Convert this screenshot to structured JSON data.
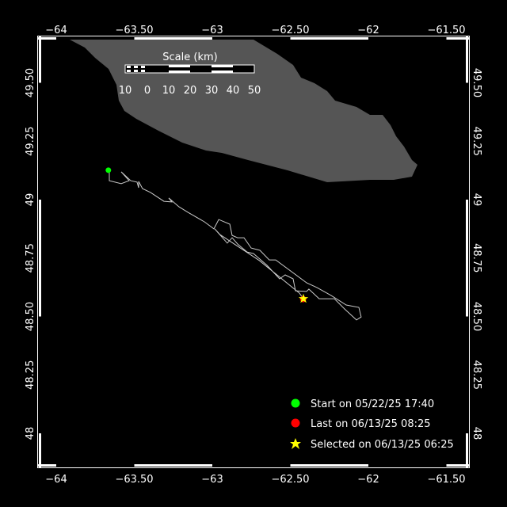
{
  "map": {
    "background_color": "#000000",
    "land_color": "#555555",
    "track_color": "#c8c8c8",
    "lon_ticks": [
      {
        "value": -64,
        "label": "−64"
      },
      {
        "value": -63.5,
        "label": "−63.50"
      },
      {
        "value": -63,
        "label": "−63"
      },
      {
        "value": -62.5,
        "label": "−62.50"
      },
      {
        "value": -62,
        "label": "−62"
      },
      {
        "value": -61.5,
        "label": "−61.50"
      }
    ],
    "lat_ticks": [
      {
        "value": 49.5,
        "label": "49.50"
      },
      {
        "value": 49.25,
        "label": "49.25"
      },
      {
        "value": 49,
        "label": "49"
      },
      {
        "value": 48.75,
        "label": "48.75"
      },
      {
        "value": 48.5,
        "label": "48.50"
      },
      {
        "value": 48.25,
        "label": "48.25"
      },
      {
        "value": 48,
        "label": "48"
      }
    ],
    "track": [
      [
        -63.666,
        49.126
      ],
      [
        -63.66,
        49.119
      ],
      [
        -63.66,
        49.081
      ],
      [
        -63.584,
        49.068
      ],
      [
        -63.533,
        49.081
      ],
      [
        -63.584,
        49.119
      ],
      [
        -63.523,
        49.081
      ],
      [
        -63.482,
        49.075
      ],
      [
        -63.472,
        49.051
      ],
      [
        -63.472,
        49.078
      ],
      [
        -63.447,
        49.047
      ],
      [
        -63.396,
        49.031
      ],
      [
        -63.31,
        48.993
      ],
      [
        -63.259,
        48.99
      ],
      [
        -63.279,
        49.007
      ],
      [
        -63.213,
        48.969
      ],
      [
        -63.157,
        48.946
      ],
      [
        -63.051,
        48.905
      ],
      [
        -62.99,
        48.875
      ],
      [
        -62.959,
        48.915
      ],
      [
        -62.888,
        48.895
      ],
      [
        -62.873,
        48.847
      ],
      [
        -62.838,
        48.837
      ],
      [
        -62.797,
        48.837
      ],
      [
        -62.751,
        48.793
      ],
      [
        -62.695,
        48.783
      ],
      [
        -62.635,
        48.742
      ],
      [
        -62.594,
        48.742
      ],
      [
        -62.396,
        48.644
      ],
      [
        -62.33,
        48.624
      ],
      [
        -62.239,
        48.59
      ],
      [
        -62.142,
        48.549
      ],
      [
        -62.061,
        48.539
      ],
      [
        -62.046,
        48.498
      ],
      [
        -62.076,
        48.485
      ],
      [
        -62.152,
        48.532
      ],
      [
        -62.218,
        48.576
      ],
      [
        -62.315,
        48.576
      ],
      [
        -62.381,
        48.617
      ],
      [
        -62.396,
        48.607
      ],
      [
        -62.467,
        48.61
      ],
      [
        -62.482,
        48.661
      ],
      [
        -62.533,
        48.678
      ],
      [
        -62.569,
        48.661
      ],
      [
        -62.65,
        48.719
      ],
      [
        -62.736,
        48.769
      ],
      [
        -62.777,
        48.776
      ],
      [
        -62.838,
        48.81
      ],
      [
        -62.873,
        48.837
      ],
      [
        -62.904,
        48.814
      ],
      [
        -62.985,
        48.875
      ],
      [
        -62.95,
        48.85
      ],
      [
        -62.7,
        48.74
      ],
      [
        -62.442,
        48.6
      ],
      [
        -62.416,
        48.576
      ]
    ],
    "start_point": [
      -63.666,
      49.126
    ],
    "last_point": [
      -62.418,
      48.574
    ],
    "selected_point": [
      -62.416,
      48.576
    ]
  },
  "scale": {
    "title": "Scale (km)",
    "labels": [
      "10",
      "0",
      "10",
      "20",
      "30",
      "40",
      "50"
    ]
  },
  "legend": {
    "start": {
      "label": "Start on 05/22/25 17:40",
      "color": "#00ff00",
      "icon": "circle"
    },
    "last": {
      "label": "Last on 06/13/25 08:25",
      "color": "#ff0000",
      "icon": "circle"
    },
    "selected": {
      "label": "Selected on 06/13/25 06:25",
      "color": "#ffff00",
      "icon": "star"
    }
  }
}
